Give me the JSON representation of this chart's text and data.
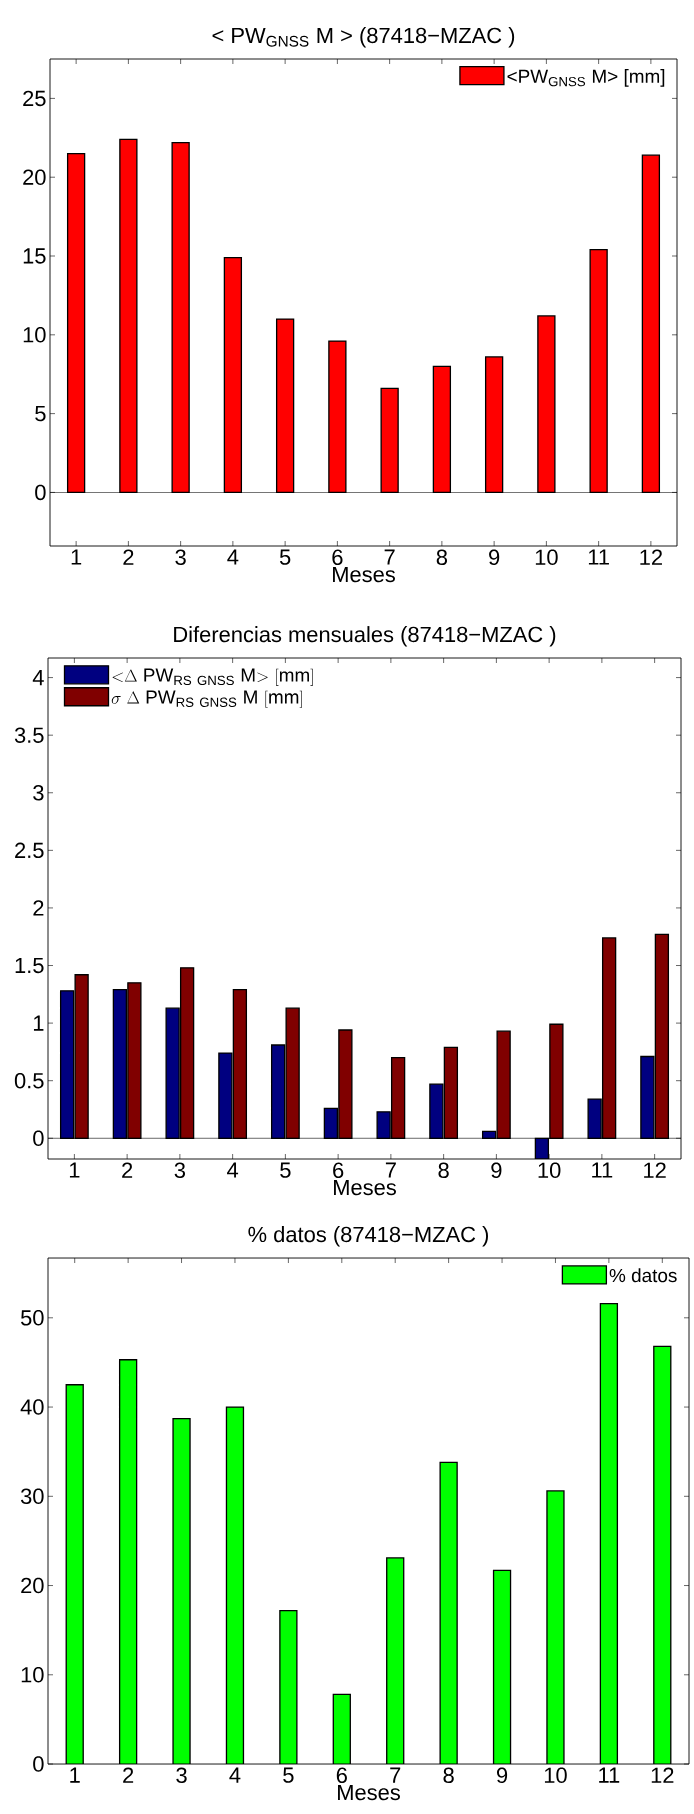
{
  "chart_data": [
    {
      "type": "bar",
      "title": "< PW$_{GNSS}$ M > (87418−MZAC )",
      "xlabel": "Meses",
      "categories": [
        "1",
        "2",
        "3",
        "4",
        "5",
        "6",
        "7",
        "8",
        "9",
        "10",
        "11",
        "12"
      ],
      "legend": "top right",
      "ylim": [
        -3.4,
        27.5
      ],
      "yticks": [
        0,
        5,
        10,
        15,
        20,
        25
      ],
      "series": [
        {
          "name": "<PW$_{GNSS}$ M> [mm]",
          "color": "#ff0000",
          "values": [
            21.5,
            22.4,
            22.2,
            14.9,
            11.0,
            9.6,
            6.6,
            8.0,
            8.6,
            11.2,
            15.4,
            21.4
          ]
        }
      ]
    },
    {
      "type": "bar",
      "title": "Diferencias mensuales (87418−MZAC )",
      "xlabel": "Meses",
      "categories": [
        "1",
        "2",
        "3",
        "4",
        "5",
        "6",
        "7",
        "8",
        "9",
        "10",
        "11",
        "12"
      ],
      "legend": "top left",
      "ylim": [
        -0.18,
        4.17
      ],
      "yticks": [
        0,
        0.5,
        1,
        1.5,
        2,
        2.5,
        3,
        3.5,
        4
      ],
      "series": [
        {
          "name": "\\mathrm{{<}}\\Delta\\ \\mathrm{PW}_{\\mathrm{RS\\ GNSS}}\\ \\mathrm{M{>}\\ [mm]}",
          "color": "#000080",
          "values": [
            1.28,
            1.29,
            1.13,
            0.74,
            0.81,
            0.26,
            0.23,
            0.47,
            0.06,
            -0.18,
            0.34,
            0.71
          ]
        },
        {
          "name": "\\sigma\\ \\Delta\\ \\mathrm{PW}_{\\mathrm{RS\\ GNSS}}\\ \\mathrm{M\\ [mm]}",
          "color": "#800000",
          "values": [
            1.42,
            1.35,
            1.48,
            1.29,
            1.13,
            0.94,
            0.7,
            0.79,
            0.93,
            0.99,
            1.74,
            1.77
          ]
        }
      ]
    },
    {
      "type": "bar",
      "title": "% datos (87418−MZAC )",
      "xlabel": "Meses",
      "categories": [
        "1",
        "2",
        "3",
        "4",
        "5",
        "6",
        "7",
        "8",
        "9",
        "10",
        "11",
        "12"
      ],
      "legend": "top right",
      "ylim": [
        0,
        56.7
      ],
      "yticks": [
        0,
        10,
        20,
        30,
        40,
        50
      ],
      "series": [
        {
          "name": "% datos",
          "color": "#00ff00",
          "values": [
            42.5,
            45.3,
            38.7,
            40.0,
            17.2,
            7.8,
            23.1,
            33.8,
            21.7,
            30.6,
            51.6,
            46.8
          ]
        }
      ]
    }
  ]
}
